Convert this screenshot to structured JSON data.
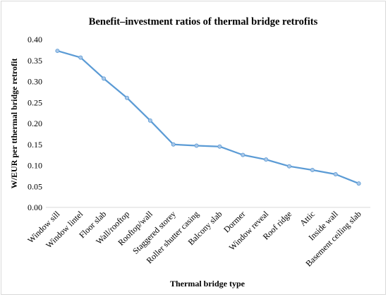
{
  "chart_data": {
    "type": "line",
    "title": "Benefit–investment ratios of thermal bridge retrofits",
    "xlabel": "Thermal bridge type",
    "ylabel": "W/EUR per tthermal bridge retrofit",
    "ylim": [
      0,
      0.4
    ],
    "yticks": [
      "0.00",
      "0.05",
      "0.10",
      "0.15",
      "0.20",
      "0.25",
      "0.30",
      "0.35",
      "0.40"
    ],
    "grid": false,
    "legend": "none",
    "categories": [
      "Window sill",
      "Window lintel",
      "Floor slab",
      "Wall/rooftop",
      "Rooftop/wall",
      "Staggered storey",
      "Roller shutter casing",
      "Balcony slab",
      "Dormer",
      "Window reveal",
      "Roof ridge",
      "Attic",
      "Inside wall",
      "Basement ceiling slab"
    ],
    "series": [
      {
        "values": [
          0.373,
          0.357,
          0.307,
          0.261,
          0.207,
          0.15,
          0.147,
          0.145,
          0.125,
          0.114,
          0.098,
          0.089,
          0.079,
          0.057
        ],
        "color": "#5b9bd5"
      }
    ]
  }
}
